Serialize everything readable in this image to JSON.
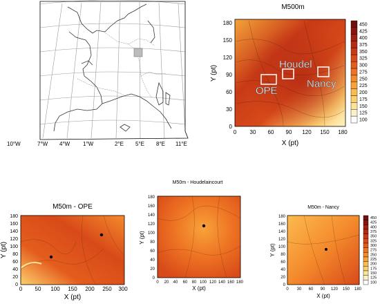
{
  "locator_map": {
    "lon_labels": [
      "10°W",
      "7°W",
      "4°W",
      "1°W",
      "2°E",
      "5°E",
      "8°E",
      "11°E"
    ]
  },
  "m500": {
    "title": "M500m",
    "xlabel": "X (pt)",
    "ylabel": "Y (pt)",
    "xticks": [
      "0",
      "30",
      "60",
      "90",
      "120",
      "150",
      "180"
    ],
    "yticks": [
      "0",
      "30",
      "60",
      "90",
      "120",
      "150",
      "180"
    ],
    "site_labels": {
      "ope": "OPE",
      "houdel": "Houdel",
      "nancy": "Nancy"
    },
    "colorbar": [
      "450",
      "425",
      "400",
      "375",
      "350",
      "325",
      "300",
      "275",
      "250",
      "225",
      "200",
      "175",
      "150",
      "125",
      "100"
    ]
  },
  "m50_ope": {
    "title": "M50m - OPE",
    "xlabel": "X (pt)",
    "ylabel": "Y (pt)",
    "xticks": [
      "0",
      "50",
      "100",
      "150",
      "200",
      "250",
      "300"
    ],
    "yticks": [
      "0",
      "20",
      "40",
      "60",
      "80",
      "100",
      "120",
      "140",
      "160",
      "180"
    ]
  },
  "m50_houdel": {
    "title": "M50m - Houdelaincourt",
    "xlabel": "X (pt)",
    "ylabel": "Y (pt)",
    "xticks": [
      "0",
      "20",
      "40",
      "60",
      "80",
      "100",
      "120",
      "140",
      "160",
      "180"
    ],
    "yticks": [
      "0",
      "20",
      "40",
      "60",
      "80",
      "100",
      "120",
      "140",
      "160",
      "180"
    ]
  },
  "m50_nancy": {
    "title": "M50m - Nancy",
    "xlabel": "X (pt)",
    "ylabel": "Y (pt)",
    "xticks": [
      "0",
      "30",
      "60",
      "90",
      "120",
      "150",
      "180"
    ],
    "yticks": [
      "0",
      "20",
      "40",
      "60",
      "80",
      "100",
      "120",
      "140",
      "160",
      "180"
    ],
    "colorbar": [
      "450",
      "425",
      "400",
      "375",
      "350",
      "325",
      "300",
      "275",
      "250",
      "225",
      "200",
      "175",
      "150",
      "125",
      "100"
    ]
  },
  "colors": {
    "scale": [
      "#ffffff",
      "#fdf1c7",
      "#fde29a",
      "#fdd06e",
      "#fcbb4e",
      "#f8a33a",
      "#f48a2c",
      "#ee7323",
      "#e45d1d",
      "#d84a19",
      "#c83a16",
      "#b52c14",
      "#a02012",
      "#8a1510",
      "#70100e"
    ]
  }
}
